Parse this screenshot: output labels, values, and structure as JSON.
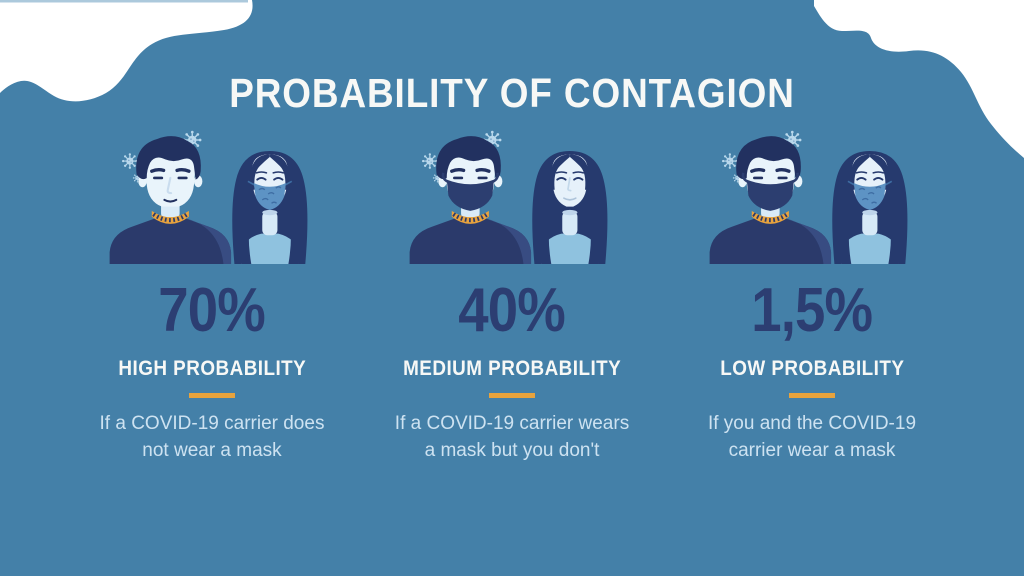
{
  "title": "PROBABILITY OF CONTAGION",
  "colors": {
    "background": "#4480a8",
    "accent_orange": "#e8a33d",
    "number_navy": "#2c3e72",
    "heading_white": "#f7f8f6",
    "description_text": "#cde2f1",
    "corner_blobs": "#ffffff",
    "virus_particle": "#b9d8ec",
    "sweater_navy": "#2b3a6b",
    "hair_navy": "#223160",
    "woman_top_blue": "#8fc2df",
    "mask_pattern_blue": "#5d93c4"
  },
  "icons": {
    "virus": "coronavirus-particle-icon"
  },
  "columns": [
    {
      "percent": "70%",
      "label": "HIGH PROBABILITY",
      "desc_line1": "If a COVID-19 carrier does",
      "desc_line2": "not wear a mask",
      "man_masked": false,
      "woman_masked": true,
      "illustration": "unmasked man with virus particles beside masked woman"
    },
    {
      "percent": "40%",
      "label": "MEDIUM PROBABILITY",
      "desc_line1": "If a COVID-19 carrier wears",
      "desc_line2": "a mask but you don't",
      "man_masked": true,
      "woman_masked": false,
      "illustration": "masked man with virus particles beside unmasked woman"
    },
    {
      "percent": "1,5%",
      "label": "LOW PROBABILITY",
      "desc_line1": "If you and the COVID-19",
      "desc_line2": "carrier wear a mask",
      "man_masked": true,
      "woman_masked": true,
      "illustration": "masked man with virus particles beside masked woman"
    }
  ]
}
